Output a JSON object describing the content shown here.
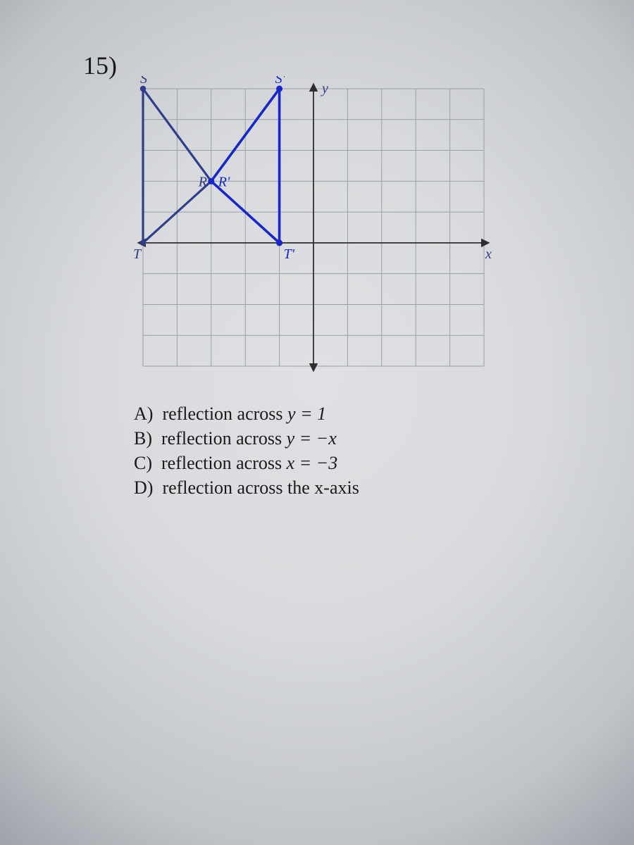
{
  "question_number": "15)",
  "graph": {
    "x_min": -5,
    "x_max": 5,
    "y_min": -4,
    "y_max": 5,
    "grid_color": "#9aa0a6",
    "axis_color": "#2e2e2e",
    "axis_label_x": "x",
    "axis_label_y": "y",
    "axis_label_color": "#2e3e8a",
    "preimage": {
      "color": "#2e3e8a",
      "stroke_width": 3.2,
      "dot_radius": 4.2,
      "points": {
        "S": {
          "x": -5,
          "y": 5,
          "label": "S",
          "label_dx": -4,
          "label_dy": -8
        },
        "T": {
          "x": -5,
          "y": 0,
          "label": "T",
          "label_dx": -14,
          "label_dy": 22
        },
        "R": {
          "x": -3,
          "y": 2,
          "label": "R",
          "label_dx": -18,
          "label_dy": 7
        }
      },
      "edges": [
        [
          "S",
          "T"
        ],
        [
          "T",
          "R"
        ],
        [
          "R",
          "S"
        ]
      ]
    },
    "image": {
      "color": "#1727c8",
      "stroke_width": 3.6,
      "dot_radius": 4.5,
      "points": {
        "S'": {
          "x": -1,
          "y": 5,
          "label": "S'",
          "label_dx": -6,
          "label_dy": -8
        },
        "T'": {
          "x": -1,
          "y": 0,
          "label": "T'",
          "label_dx": 6,
          "label_dy": 22
        },
        "R'": {
          "x": -3,
          "y": 2,
          "label": "R'",
          "label_dx": 10,
          "label_dy": 7
        }
      },
      "edges": [
        [
          "S'",
          "T'"
        ],
        [
          "T'",
          "R'"
        ],
        [
          "R'",
          "S'"
        ]
      ]
    }
  },
  "answers": {
    "A": {
      "letter": "A)",
      "text": "reflection across ",
      "math": "y = 1"
    },
    "B": {
      "letter": "B)",
      "text": "reflection across ",
      "math": "y = −x"
    },
    "C": {
      "letter": "C)",
      "text": "reflection across ",
      "math": "x = −3"
    },
    "D": {
      "letter": "D)",
      "text": "reflection across the x-axis",
      "math": ""
    }
  }
}
